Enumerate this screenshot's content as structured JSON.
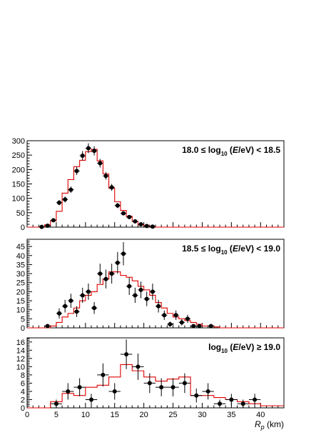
{
  "chart_data": [
    {
      "type": "histogram",
      "title_parts": [
        "18.0 ≤ log",
        "10",
        " (",
        "E",
        "/eV) < 18.5"
      ],
      "xlabel": "",
      "ylim": [
        0,
        300
      ],
      "yticks": [
        0,
        50,
        100,
        150,
        200,
        250,
        300
      ],
      "xlim": [
        0,
        44
      ],
      "bin_width": 1,
      "mc_histogram": [
        0,
        0,
        0,
        8,
        22,
        55,
        118,
        165,
        210,
        232,
        262,
        270,
        230,
        185,
        135,
        88,
        58,
        38,
        20,
        8,
        5,
        2,
        0,
        0,
        0,
        0,
        0,
        0,
        0,
        0,
        0,
        0,
        0,
        0,
        0,
        0,
        0,
        0,
        0,
        0,
        0,
        0,
        0,
        0
      ],
      "data_points": {
        "x": [
          2.5,
          3.5,
          4.5,
          5.5,
          6.5,
          7.5,
          8.5,
          9.5,
          10.5,
          11.5,
          12.5,
          13.5,
          14.5,
          15.5,
          16.5,
          17.5,
          18.5,
          19.5,
          20.5,
          21.5
        ],
        "y": [
          1,
          5,
          24,
          85,
          96,
          130,
          195,
          248,
          274,
          265,
          222,
          178,
          138,
          75,
          48,
          35,
          20,
          10,
          4,
          2
        ],
        "err": [
          1,
          2,
          5,
          9,
          10,
          11,
          14,
          16,
          17,
          16,
          15,
          13,
          12,
          9,
          7,
          6,
          4.5,
          3.2,
          2,
          1.4
        ]
      }
    },
    {
      "type": "histogram",
      "title_parts": [
        "18.5 ≤ log",
        "10",
        " (",
        "E",
        "/eV) < 19.0"
      ],
      "xlabel": "",
      "ylim": [
        0,
        49
      ],
      "yticks": [
        0,
        5,
        10,
        15,
        20,
        25,
        30,
        35,
        40,
        45
      ],
      "xlim": [
        0,
        44
      ],
      "bin_width": 1,
      "mc_histogram": [
        0,
        0,
        0,
        0,
        1,
        3,
        6,
        8,
        11,
        15,
        18,
        20,
        24,
        27,
        31,
        31,
        29,
        28,
        26,
        23,
        21,
        18,
        14,
        11,
        8,
        6,
        5,
        4,
        3,
        2,
        1,
        1,
        0.5,
        0,
        0,
        0,
        0,
        0,
        0,
        0,
        0,
        0,
        0,
        0
      ],
      "data_points": {
        "x": [
          3.5,
          5.5,
          6.5,
          7.5,
          8.5,
          9.5,
          10.5,
          11.5,
          12.5,
          13.5,
          14.5,
          15.5,
          16.5,
          17.5,
          18.5,
          19.5,
          20.5,
          21.5,
          22.5,
          23.5,
          24.5,
          25.5,
          26.5,
          27.5,
          28.5,
          29.5,
          31.5
        ],
        "y": [
          1,
          8,
          12,
          15,
          9,
          18,
          20,
          11,
          30,
          27,
          30,
          36,
          41,
          23,
          18,
          21,
          16,
          20,
          12,
          7,
          2,
          7,
          3,
          5,
          1,
          1,
          1
        ],
        "err": [
          1,
          2.8,
          3.5,
          3.9,
          3,
          4.2,
          4.5,
          3.3,
          5.5,
          5.2,
          5.5,
          6,
          6.4,
          4.8,
          4.2,
          4.6,
          4,
          4.5,
          3.5,
          2.6,
          1.4,
          2.6,
          1.7,
          2.2,
          1,
          1,
          1
        ]
      }
    },
    {
      "type": "histogram",
      "title_parts": [
        "log",
        "10",
        " (",
        "E",
        "/eV) ≥ 19.0"
      ],
      "xlabel": "R_p (km)",
      "ylim": [
        0,
        17
      ],
      "yticks": [
        0,
        2,
        4,
        6,
        8,
        10,
        12,
        14,
        16
      ],
      "xlim": [
        0,
        44
      ],
      "xticks": [
        0,
        5,
        10,
        15,
        20,
        25,
        30,
        35,
        40
      ],
      "bin_width": 2,
      "mc_histogram": [
        0,
        0,
        1.5,
        3.5,
        3,
        5,
        5.5,
        7.5,
        10.5,
        9,
        7.5,
        6.5,
        7,
        7.5,
        3,
        3,
        2.5,
        2,
        1.5,
        1,
        0.5,
        0.5
      ],
      "data_points": {
        "x": [
          5,
          7,
          9,
          11,
          13,
          15,
          17,
          19,
          21,
          23,
          25,
          27,
          29,
          31,
          33,
          35,
          37,
          39
        ],
        "y": [
          1,
          4,
          5,
          2,
          8,
          4,
          13,
          10,
          6,
          5,
          5,
          6,
          3,
          4,
          1,
          2,
          1,
          2
        ],
        "err": [
          1,
          2,
          2.2,
          1.4,
          2.8,
          2,
          3.6,
          3.2,
          2.4,
          2.2,
          2.2,
          2.4,
          1.7,
          2,
          1,
          1.4,
          1,
          1.4
        ]
      }
    }
  ]
}
